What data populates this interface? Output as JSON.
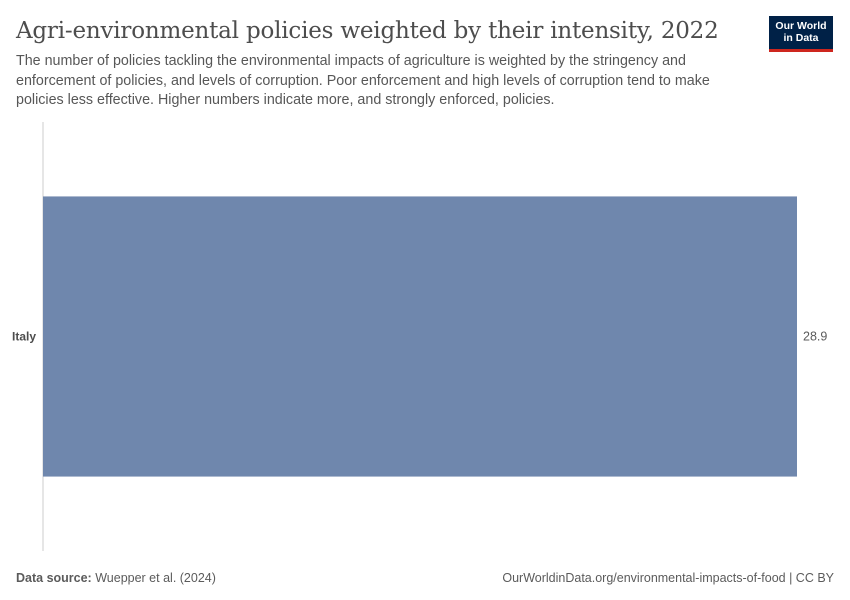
{
  "header": {
    "title": "Agri-environmental policies weighted by their intensity, 2022",
    "subtitle": "The number of policies tackling the environmental impacts of agriculture is weighted by the stringency and enforcement of policies, and levels of corruption. Poor enforcement and high levels of corruption tend to make policies less effective. Higher numbers indicate more, and strongly enforced, policies.",
    "logo_line1": "Our World",
    "logo_line2": "in Data"
  },
  "colors": {
    "bar": "#6f87ad",
    "axis": "#dddddd",
    "logo_bg": "#002147",
    "logo_accent": "#ce261e"
  },
  "chart_data": {
    "type": "bar",
    "orientation": "horizontal",
    "categories": [
      "Italy"
    ],
    "values": [
      28.9
    ],
    "value_labels": [
      "28.9"
    ],
    "title": "Agri-environmental policies weighted by their intensity, 2022",
    "xlim": [
      0,
      28.9
    ],
    "grid": false
  },
  "footer": {
    "source_label": "Data source:",
    "source_text": "Wuepper et al. (2024)",
    "credit": "OurWorldinData.org/environmental-impacts-of-food | CC BY"
  }
}
